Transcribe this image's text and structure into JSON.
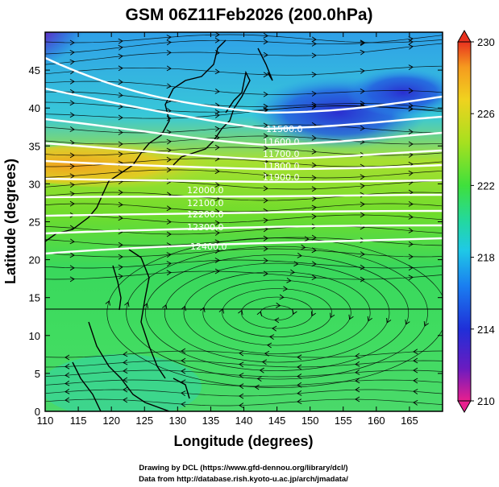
{
  "map": {
    "title": "GSM 06Z11Feb2026 (200.0hPa)",
    "xlabel": "Longitude (degrees)",
    "ylabel": "Latitude (degrees)",
    "x_ticks": [
      "110",
      "115",
      "120",
      "125",
      "130",
      "135",
      "140",
      "145",
      "150",
      "155",
      "160",
      "165"
    ],
    "y_ticks": [
      "0",
      "5",
      "10",
      "15",
      "20",
      "25",
      "30",
      "35",
      "40",
      "45"
    ],
    "x_range": [
      110,
      170
    ],
    "y_range": [
      0,
      50
    ],
    "colorbar": {
      "labels": [
        "230",
        "226",
        "222",
        "218",
        "214",
        "210"
      ],
      "range": [
        210,
        230
      ],
      "colors": [
        "#e81f8e",
        "#6a1bc0",
        "#1f2fd8",
        "#1a7ef0",
        "#1fc9e6",
        "#23d8a0",
        "#3fe03c",
        "#a7e01f",
        "#f0d21f",
        "#f59a1f",
        "#e8321f"
      ]
    },
    "contour_labels": [
      "11500.0",
      "11600.0",
      "11700.0",
      "11800.0",
      "11900.0",
      "12000.0",
      "12100.0",
      "12200.0",
      "12300.0",
      "12400.0"
    ],
    "credits": {
      "line1": "Drawing by DCL (https://www.gfd-dennou.org/library/dcl/)",
      "line2": "Data from http://database.rish.kyoto-u.ac.jp/arch/jmadata/"
    }
  }
}
